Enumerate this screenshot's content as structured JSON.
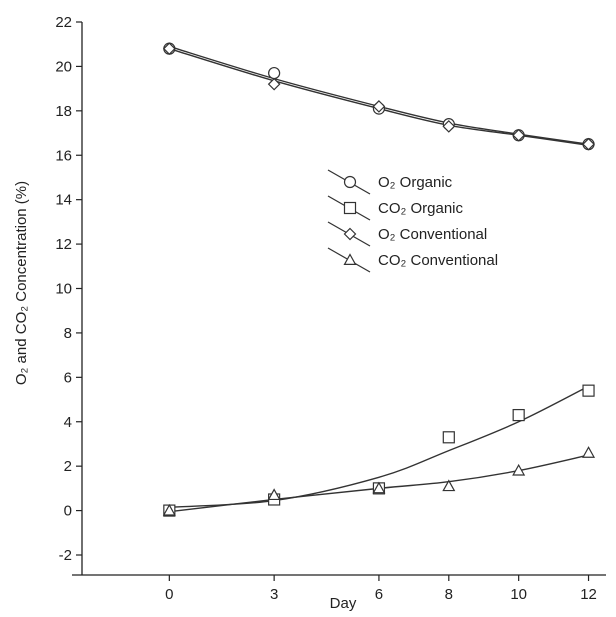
{
  "chart_data": {
    "type": "scatter",
    "title": "",
    "xlabel": "Day",
    "ylabel": "O₂ and CO₂ Concentration (%)",
    "xlim": [
      -2.5,
      12.5
    ],
    "ylim": [
      -2,
      22
    ],
    "x_ticks": [
      0,
      3,
      6,
      8,
      10,
      12
    ],
    "x_tick_labels": [
      "0",
      "3",
      "6",
      "8",
      "10",
      "12"
    ],
    "y_ticks": [
      -2,
      0,
      2,
      4,
      6,
      8,
      10,
      12,
      14,
      16,
      18,
      20,
      22
    ],
    "y_tick_labels": [
      "-2",
      "0",
      "2",
      "4",
      "6",
      "8",
      "10",
      "12",
      "14",
      "16",
      "18",
      "20",
      "22"
    ],
    "grid": false,
    "legend_position": "center-right",
    "series": [
      {
        "name": "O₂ Organic",
        "marker": "circle",
        "color": "#333333",
        "x": [
          0,
          3,
          6,
          8,
          10,
          12
        ],
        "y": [
          20.8,
          19.7,
          18.1,
          17.4,
          16.9,
          16.5
        ],
        "fit": [
          20.9,
          19.45,
          18.2,
          17.45,
          16.95,
          16.5
        ]
      },
      {
        "name": "CO₂ Organic",
        "marker": "square",
        "color": "#333333",
        "x": [
          0,
          3,
          6,
          8,
          10,
          12
        ],
        "y": [
          0.0,
          0.5,
          1.0,
          3.3,
          4.3,
          5.4
        ],
        "fit": [
          0.15,
          0.45,
          1.5,
          2.7,
          4.0,
          5.6
        ]
      },
      {
        "name": "O₂ Conventional",
        "marker": "diamond",
        "color": "#333333",
        "x": [
          0,
          3,
          6,
          8,
          10,
          12
        ],
        "y": [
          20.8,
          19.2,
          18.2,
          17.3,
          16.9,
          16.5
        ],
        "fit": [
          20.8,
          19.35,
          18.1,
          17.35,
          16.9,
          16.45
        ]
      },
      {
        "name": "CO₂ Conventional",
        "marker": "triangle",
        "color": "#333333",
        "x": [
          0,
          3,
          6,
          8,
          10,
          12
        ],
        "y": [
          0.0,
          0.7,
          1.0,
          1.1,
          1.8,
          2.6
        ],
        "fit": [
          -0.05,
          0.5,
          1.0,
          1.3,
          1.8,
          2.5
        ]
      }
    ]
  }
}
